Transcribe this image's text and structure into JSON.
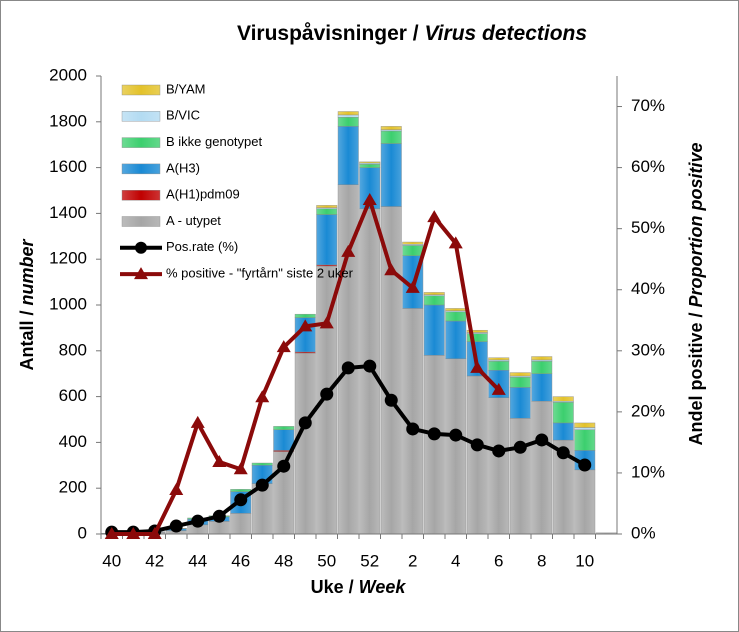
{
  "chart_data": {
    "type": "bar",
    "title": {
      "text": "Viruspåvisninger / ",
      "italic": "Virus detections"
    },
    "x_label": {
      "text": "Uke / ",
      "italic": "Week"
    },
    "y_label": {
      "text": "Antall / ",
      "italic": "number"
    },
    "y2_label": {
      "text": "Andel positive / ",
      "italic": "Proportion positive"
    },
    "stacked": true,
    "legend": "upper left",
    "categories": [
      "40",
      null,
      "42",
      null,
      "44",
      null,
      "46",
      null,
      "48",
      null,
      "50",
      null,
      "52",
      null,
      "2",
      null,
      "4",
      null,
      "6",
      null,
      "8",
      null,
      "10",
      null
    ],
    "ylim": [
      0,
      2000
    ],
    "yticks": [
      0,
      200,
      400,
      600,
      800,
      1000,
      1200,
      1400,
      1600,
      1800,
      2000
    ],
    "y2lim": [
      0,
      75
    ],
    "y2ticks": [
      {
        "value": 0,
        "label": "0%"
      },
      {
        "value": 10,
        "label": "10%"
      },
      {
        "value": 20,
        "label": "20%"
      },
      {
        "value": 30,
        "label": "30%"
      },
      {
        "value": 40,
        "label": "40%"
      },
      {
        "value": 50,
        "label": "50%"
      },
      {
        "value": 60,
        "label": "60%"
      },
      {
        "value": 70,
        "label": "70%"
      }
    ],
    "series": [
      {
        "name": "A - utypet",
        "type": "bar",
        "color": "#a6a6a6",
        "values": [
          2,
          3,
          8,
          15,
          40,
          55,
          90,
          220,
          360,
          790,
          1170,
          1525,
          1420,
          1430,
          985,
          780,
          765,
          690,
          595,
          505,
          580,
          410,
          280,
          5
        ]
      },
      {
        "name": "A(H1)pdm09",
        "type": "bar",
        "color": "#c00000",
        "values": [
          0,
          0,
          0,
          0,
          0,
          0,
          0,
          0,
          5,
          5,
          5,
          0,
          0,
          0,
          0,
          0,
          0,
          0,
          0,
          0,
          0,
          0,
          0,
          0
        ]
      },
      {
        "name": "A(H3)",
        "type": "bar",
        "color": "#1a8ad4",
        "values": [
          1,
          0,
          2,
          8,
          25,
          20,
          95,
          80,
          90,
          150,
          220,
          255,
          180,
          275,
          230,
          220,
          165,
          150,
          120,
          135,
          120,
          75,
          85,
          0
        ]
      },
      {
        "name": "B ikke genotypet",
        "type": "bar",
        "color": "#3ccf6e",
        "values": [
          0,
          0,
          0,
          2,
          5,
          5,
          10,
          10,
          15,
          15,
          25,
          40,
          15,
          55,
          45,
          40,
          40,
          35,
          40,
          45,
          55,
          90,
          90,
          0
        ]
      },
      {
        "name": "B/VIC",
        "type": "bar",
        "color": "#b3dbf2",
        "values": [
          0,
          0,
          0,
          0,
          0,
          0,
          0,
          0,
          0,
          0,
          5,
          10,
          5,
          5,
          5,
          5,
          5,
          5,
          5,
          5,
          5,
          5,
          10,
          0
        ]
      },
      {
        "name": "B/YAM",
        "type": "bar",
        "color": "#e3c22a",
        "values": [
          0,
          0,
          0,
          0,
          0,
          0,
          0,
          0,
          0,
          0,
          10,
          15,
          5,
          15,
          10,
          10,
          10,
          10,
          10,
          15,
          15,
          20,
          20,
          0
        ]
      },
      {
        "name": "Pos.rate (%)",
        "type": "line",
        "axis": "y2",
        "color": "#000000",
        "marker": "circle",
        "values": [
          0.3,
          0.3,
          0.5,
          1.3,
          2.1,
          2.9,
          5.6,
          8.0,
          11.1,
          18.2,
          22.9,
          27.2,
          27.5,
          21.9,
          17.2,
          16.4,
          16.2,
          14.6,
          13.6,
          14.2,
          15.4,
          13.3,
          11.3,
          null
        ]
      },
      {
        "name": "% positive - \"fyrtårn\" siste 2 uker",
        "type": "line",
        "axis": "y2",
        "color": "#8b0a0a",
        "marker": "triangle",
        "values": [
          0,
          0,
          0,
          7.2,
          18.2,
          11.8,
          10.6,
          22.4,
          30.6,
          34.0,
          34.5,
          46.2,
          54.7,
          43.2,
          40.3,
          51.9,
          47.6,
          27.2,
          23.6,
          null,
          null,
          null,
          null,
          null
        ]
      }
    ]
  }
}
